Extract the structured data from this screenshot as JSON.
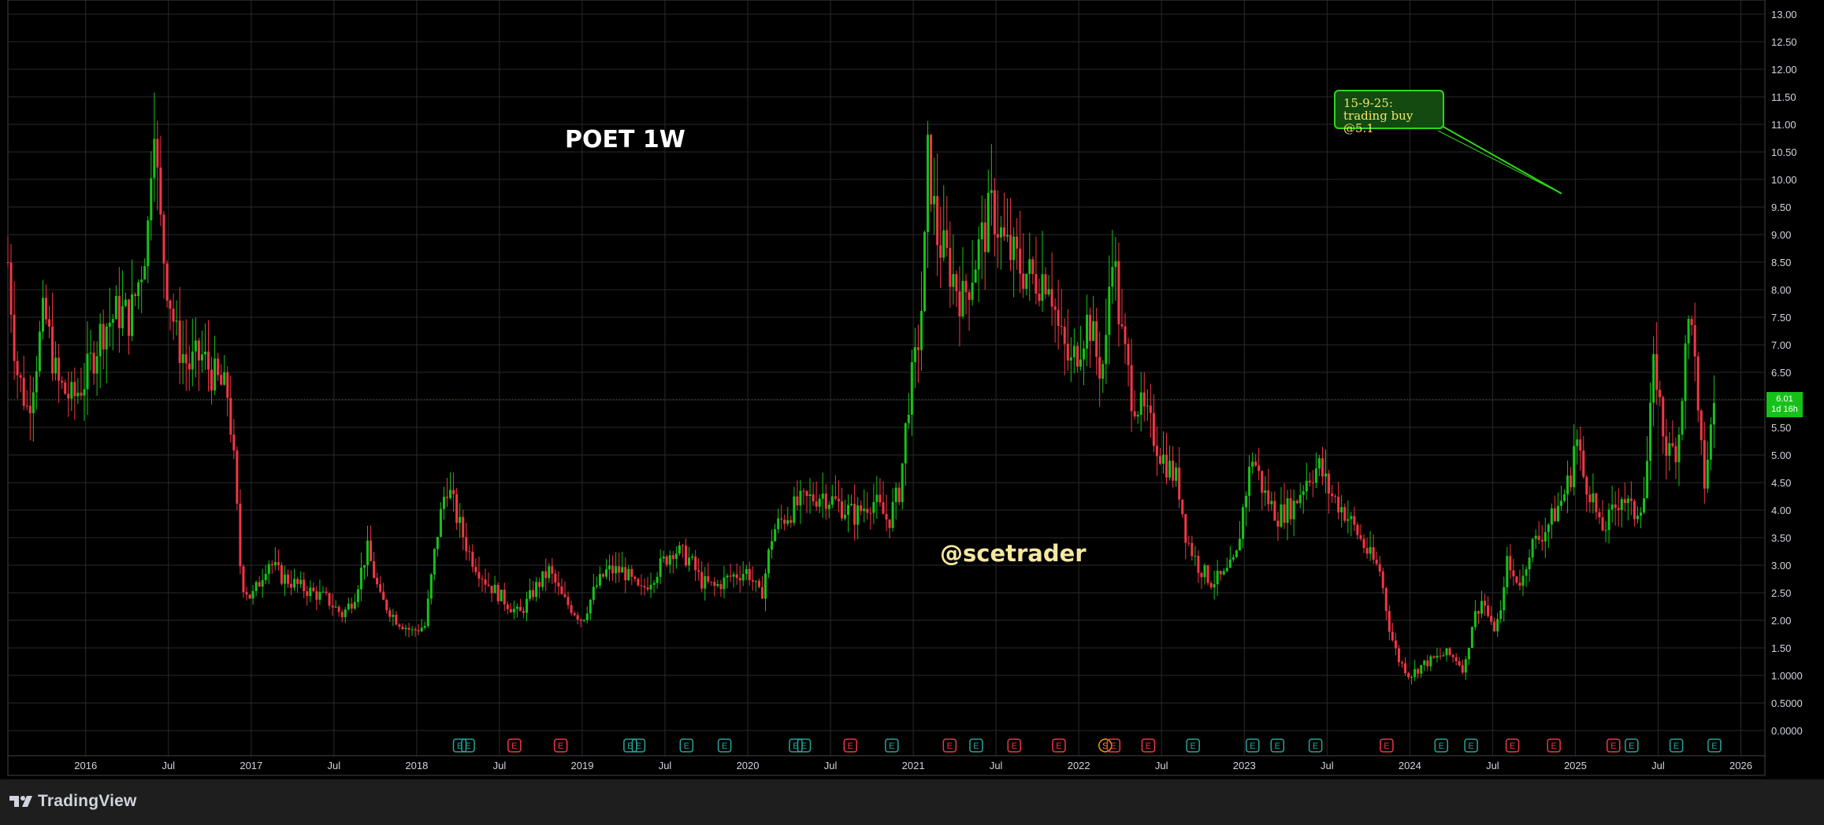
{
  "chart_data": {
    "type": "candlestick",
    "title": "POET 1W",
    "watermark": "@scetrader",
    "annotation": "15-9-25: trading buy @5.1",
    "ylim": [
      -0.5,
      13.25
    ],
    "y_ticks": [
      "13.00",
      "12.50",
      "12.00",
      "11.50",
      "11.00",
      "10.50",
      "10.00",
      "9.50",
      "9.00",
      "8.50",
      "8.00",
      "7.50",
      "7.00",
      "6.50",
      "6.00",
      "5.50",
      "5.00",
      "4.50",
      "4.00",
      "3.50",
      "3.00",
      "2.50",
      "2.00",
      "1.50",
      "1.0000",
      "0.5000",
      "0.0000"
    ],
    "x_ticks": [
      {
        "label": "2016",
        "t": 2016.0
      },
      {
        "label": "Jul",
        "t": 2016.5
      },
      {
        "label": "2017",
        "t": 2017.0
      },
      {
        "label": "Jul",
        "t": 2017.5
      },
      {
        "label": "2018",
        "t": 2018.0
      },
      {
        "label": "Jul",
        "t": 2018.5
      },
      {
        "label": "2019",
        "t": 2019.0
      },
      {
        "label": "Jul",
        "t": 2019.5
      },
      {
        "label": "2020",
        "t": 2020.0
      },
      {
        "label": "Jul",
        "t": 2020.5
      },
      {
        "label": "2021",
        "t": 2021.0
      },
      {
        "label": "Jul",
        "t": 2021.5
      },
      {
        "label": "2022",
        "t": 2022.0
      },
      {
        "label": "Jul",
        "t": 2022.5
      },
      {
        "label": "2023",
        "t": 2023.0
      },
      {
        "label": "Jul",
        "t": 2023.5
      },
      {
        "label": "2024",
        "t": 2024.0
      },
      {
        "label": "Jul",
        "t": 2024.5
      },
      {
        "label": "2025",
        "t": 2025.0
      },
      {
        "label": "Jul",
        "t": 2025.5
      },
      {
        "label": "2026",
        "t": 2026.0
      }
    ],
    "path_points": [
      [
        2015.53,
        8.5
      ],
      [
        2015.58,
        6.6
      ],
      [
        2015.65,
        5.8
      ],
      [
        2015.75,
        7.6
      ],
      [
        2015.83,
        6.3
      ],
      [
        2015.92,
        6.0
      ],
      [
        2016.0,
        6.4
      ],
      [
        2016.1,
        7.3
      ],
      [
        2016.2,
        7.6
      ],
      [
        2016.27,
        7.5
      ],
      [
        2016.33,
        8.3
      ],
      [
        2016.38,
        9.2
      ],
      [
        2016.41,
        11.7
      ],
      [
        2016.44,
        9.5
      ],
      [
        2016.48,
        8.4
      ],
      [
        2016.55,
        7.1
      ],
      [
        2016.62,
        6.6
      ],
      [
        2016.7,
        6.8
      ],
      [
        2016.78,
        6.4
      ],
      [
        2016.86,
        6.1
      ],
      [
        2016.9,
        4.7
      ],
      [
        2016.94,
        2.7
      ],
      [
        2017.0,
        2.4
      ],
      [
        2017.05,
        2.7
      ],
      [
        2017.1,
        3.1
      ],
      [
        2017.18,
        2.8
      ],
      [
        2017.3,
        2.6
      ],
      [
        2017.45,
        2.4
      ],
      [
        2017.55,
        2.1
      ],
      [
        2017.62,
        2.4
      ],
      [
        2017.7,
        3.3
      ],
      [
        2017.78,
        2.4
      ],
      [
        2017.88,
        2.0
      ],
      [
        2017.97,
        1.8
      ],
      [
        2018.05,
        1.9
      ],
      [
        2018.12,
        3.5
      ],
      [
        2018.18,
        4.5
      ],
      [
        2018.25,
        3.8
      ],
      [
        2018.32,
        3.2
      ],
      [
        2018.42,
        2.7
      ],
      [
        2018.55,
        2.3
      ],
      [
        2018.62,
        2.1
      ],
      [
        2018.72,
        2.6
      ],
      [
        2018.8,
        2.9
      ],
      [
        2018.88,
        2.4
      ],
      [
        2019.0,
        2.0
      ],
      [
        2019.08,
        2.6
      ],
      [
        2019.15,
        2.9
      ],
      [
        2019.25,
        2.9
      ],
      [
        2019.35,
        2.5
      ],
      [
        2019.45,
        2.9
      ],
      [
        2019.55,
        3.3
      ],
      [
        2019.65,
        3.1
      ],
      [
        2019.72,
        2.7
      ],
      [
        2019.8,
        2.6
      ],
      [
        2019.9,
        2.8
      ],
      [
        2020.0,
        2.9
      ],
      [
        2020.08,
        2.4
      ],
      [
        2020.15,
        3.6
      ],
      [
        2020.2,
        3.8
      ],
      [
        2020.3,
        4.1
      ],
      [
        2020.45,
        4.3
      ],
      [
        2020.55,
        4.1
      ],
      [
        2020.65,
        3.9
      ],
      [
        2020.75,
        4.2
      ],
      [
        2020.85,
        3.8
      ],
      [
        2020.92,
        4.4
      ],
      [
        2020.97,
        6.0
      ],
      [
        2021.02,
        6.8
      ],
      [
        2021.06,
        8.0
      ],
      [
        2021.09,
        10.5
      ],
      [
        2021.14,
        9.0
      ],
      [
        2021.22,
        8.4
      ],
      [
        2021.3,
        7.8
      ],
      [
        2021.38,
        8.6
      ],
      [
        2021.48,
        9.5
      ],
      [
        2021.55,
        8.8
      ],
      [
        2021.65,
        8.4
      ],
      [
        2021.72,
        8.2
      ],
      [
        2021.82,
        8.3
      ],
      [
        2021.88,
        7.2
      ],
      [
        2021.95,
        6.6
      ],
      [
        2022.0,
        7.0
      ],
      [
        2022.06,
        7.5
      ],
      [
        2022.12,
        6.6
      ],
      [
        2022.16,
        6.7
      ],
      [
        2022.2,
        9.0
      ],
      [
        2022.25,
        7.3
      ],
      [
        2022.32,
        6.1
      ],
      [
        2022.42,
        5.6
      ],
      [
        2022.5,
        5.0
      ],
      [
        2022.6,
        4.5
      ],
      [
        2022.65,
        3.5
      ],
      [
        2022.72,
        3.0
      ],
      [
        2022.8,
        2.7
      ],
      [
        2022.88,
        2.8
      ],
      [
        2022.95,
        3.1
      ],
      [
        2023.0,
        4.2
      ],
      [
        2023.05,
        5.0
      ],
      [
        2023.12,
        4.3
      ],
      [
        2023.2,
        3.9
      ],
      [
        2023.3,
        4.1
      ],
      [
        2023.38,
        4.6
      ],
      [
        2023.45,
        4.8
      ],
      [
        2023.52,
        4.3
      ],
      [
        2023.6,
        4.0
      ],
      [
        2023.68,
        3.6
      ],
      [
        2023.75,
        3.2
      ],
      [
        2023.82,
        2.9
      ],
      [
        2023.88,
        1.8
      ],
      [
        2023.93,
        1.3
      ],
      [
        2024.0,
        1.0
      ],
      [
        2024.08,
        1.2
      ],
      [
        2024.15,
        1.3
      ],
      [
        2024.22,
        1.4
      ],
      [
        2024.28,
        1.3
      ],
      [
        2024.33,
        1.1
      ],
      [
        2024.38,
        2.0
      ],
      [
        2024.44,
        2.4
      ],
      [
        2024.5,
        1.8
      ],
      [
        2024.55,
        2.1
      ],
      [
        2024.58,
        3.1
      ],
      [
        2024.62,
        2.8
      ],
      [
        2024.68,
        2.7
      ],
      [
        2024.72,
        3.3
      ],
      [
        2024.78,
        3.5
      ],
      [
        2024.85,
        3.8
      ],
      [
        2024.92,
        4.2
      ],
      [
        2024.97,
        4.6
      ],
      [
        2025.0,
        5.4
      ],
      [
        2025.05,
        4.6
      ],
      [
        2025.1,
        4.3
      ],
      [
        2025.15,
        3.6
      ],
      [
        2025.2,
        3.8
      ],
      [
        2025.28,
        4.3
      ],
      [
        2025.35,
        3.9
      ],
      [
        2025.42,
        4.3
      ],
      [
        2025.48,
        6.8
      ],
      [
        2025.52,
        5.6
      ],
      [
        2025.56,
        5.0
      ],
      [
        2025.62,
        5.2
      ],
      [
        2025.65,
        6.4
      ],
      [
        2025.7,
        7.8
      ],
      [
        2025.74,
        5.6
      ],
      [
        2025.78,
        4.5
      ],
      [
        2025.82,
        5.5
      ],
      [
        2025.84,
        6.0
      ]
    ],
    "event_markers": [
      {
        "t": 2018.26,
        "label": "E",
        "color": "teal"
      },
      {
        "t": 2018.31,
        "label": "E",
        "color": "teal"
      },
      {
        "t": 2018.59,
        "label": "E",
        "color": "red"
      },
      {
        "t": 2018.87,
        "label": "E",
        "color": "red"
      },
      {
        "t": 2019.29,
        "label": "E",
        "color": "teal"
      },
      {
        "t": 2019.34,
        "label": "E",
        "color": "teal"
      },
      {
        "t": 2019.63,
        "label": "E",
        "color": "teal"
      },
      {
        "t": 2019.86,
        "label": "E",
        "color": "teal"
      },
      {
        "t": 2020.29,
        "label": "E",
        "color": "teal"
      },
      {
        "t": 2020.34,
        "label": "E",
        "color": "teal"
      },
      {
        "t": 2020.62,
        "label": "E",
        "color": "red"
      },
      {
        "t": 2020.87,
        "label": "E",
        "color": "teal"
      },
      {
        "t": 2021.22,
        "label": "E",
        "color": "red"
      },
      {
        "t": 2021.38,
        "label": "E",
        "color": "teal"
      },
      {
        "t": 2021.61,
        "label": "E",
        "color": "red"
      },
      {
        "t": 2021.88,
        "label": "E",
        "color": "red"
      },
      {
        "t": 2022.16,
        "label": "S",
        "color": "orange"
      },
      {
        "t": 2022.21,
        "label": "E",
        "color": "red"
      },
      {
        "t": 2022.42,
        "label": "E",
        "color": "red"
      },
      {
        "t": 2022.69,
        "label": "E",
        "color": "teal"
      },
      {
        "t": 2023.05,
        "label": "E",
        "color": "teal"
      },
      {
        "t": 2023.2,
        "label": "E",
        "color": "teal"
      },
      {
        "t": 2023.43,
        "label": "E",
        "color": "teal"
      },
      {
        "t": 2023.86,
        "label": "E",
        "color": "red"
      },
      {
        "t": 2024.19,
        "label": "E",
        "color": "teal"
      },
      {
        "t": 2024.37,
        "label": "E",
        "color": "teal"
      },
      {
        "t": 2024.62,
        "label": "E",
        "color": "red"
      },
      {
        "t": 2024.87,
        "label": "E",
        "color": "red"
      },
      {
        "t": 2025.23,
        "label": "E",
        "color": "red"
      },
      {
        "t": 2025.34,
        "label": "E",
        "color": "teal"
      },
      {
        "t": 2025.61,
        "label": "E",
        "color": "teal"
      },
      {
        "t": 2025.84,
        "label": "E",
        "color": "teal"
      }
    ],
    "last_price": "6.01",
    "countdown": "1d 16h",
    "colors": {
      "up": "#16c21a",
      "down": "#f23645",
      "grid": "#2a2a2a",
      "axis_text": "#d1d4dc",
      "teal": "#26a69a",
      "red": "#f23645",
      "orange": "#ff9800"
    }
  },
  "footer": {
    "brand": "TradingView"
  }
}
